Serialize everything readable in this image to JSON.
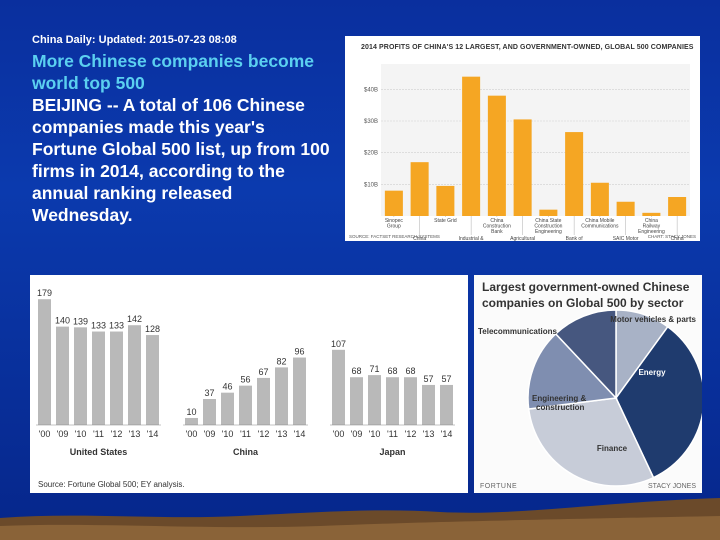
{
  "header": {
    "dateline": "China Daily: Updated: 2015-07-23 08:08"
  },
  "headline": {
    "title": "More Chinese companies become world top 500",
    "body": "BEIJING -- A total of 106 Chinese companies made this year's Fortune Global 500 list, up from 100 firms in 2014, according to the annual ranking released Wednesday."
  },
  "colors": {
    "background": "#0b3aae",
    "title": "#5bd0f0",
    "orange": "#f5a623",
    "gray": "#b9b9b9",
    "navy": "#1f3b6e"
  },
  "chart_data": [
    {
      "type": "bar",
      "title": "2014 PROFITS OF CHINA'S 12 LARGEST, AND GOVERNMENT-OWNED, GLOBAL 500 COMPANIES",
      "categories": [
        "Sinopec Group",
        "China National Petroleum",
        "State Grid",
        "Industrial & Commercial Bank of China",
        "China Construction Bank",
        "Agricultural Bank of China",
        "China State Construction Engineering",
        "Bank of China",
        "China Mobile Communications",
        "SAIC Motor",
        "China Railway Engineering",
        "China Nationa Offshore Oil"
      ],
      "values": [
        8.0,
        17.0,
        9.5,
        44.0,
        38.0,
        30.5,
        2.0,
        26.5,
        10.5,
        4.5,
        1.0,
        6.0
      ],
      "ytick_labels": [
        "$40B",
        "$30B",
        "$20B",
        "$10B"
      ],
      "ytick_values": [
        40,
        30,
        20,
        10
      ],
      "ylim": [
        0,
        48
      ],
      "source": "SOURCE: FACTSET RESEARCH SYSTEMS",
      "credit": "CHART: STACY JONES"
    },
    {
      "type": "bar",
      "title": "",
      "groups": [
        {
          "name": "United States",
          "labels": [
            "'00",
            "'09",
            "'10",
            "'11",
            "'12",
            "'13",
            "'14"
          ],
          "values": [
            179,
            140,
            139,
            133,
            133,
            142,
            128
          ]
        },
        {
          "name": "China",
          "labels": [
            "'00",
            "'09",
            "'10",
            "'11",
            "'12",
            "'13",
            "'14"
          ],
          "values": [
            10,
            37,
            46,
            56,
            67,
            82,
            96
          ]
        },
        {
          "name": "Japan",
          "labels": [
            "'00",
            "'09",
            "'10",
            "'11",
            "'12",
            "'13",
            "'14"
          ],
          "values": [
            107,
            68,
            71,
            68,
            68,
            57,
            57
          ]
        }
      ],
      "ylim": [
        0,
        185
      ],
      "source": "Source: Fortune Global 500; EY analysis."
    },
    {
      "type": "pie",
      "title": "Largest government-owned Chinese companies on Global 500 by sector",
      "slices": [
        {
          "label": "Motor vehicles & parts",
          "value": 10
        },
        {
          "label": "Energy",
          "value": 33
        },
        {
          "label": "Finance",
          "value": 30
        },
        {
          "label": "Engineering & construction",
          "value": 15
        },
        {
          "label": "Telecommunications",
          "value": 12
        }
      ],
      "brand": "FORTUNE",
      "credit": "STACY JONES"
    }
  ]
}
